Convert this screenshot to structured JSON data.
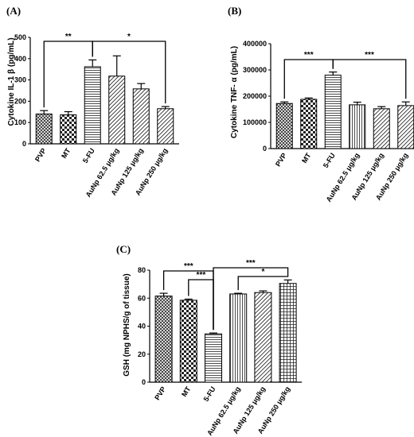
{
  "chart_data": [
    {
      "panel": "(A)",
      "type": "bar",
      "ylabel": "Cytokine IL-1  β (pg/mL)",
      "ylim": [
        0,
        500
      ],
      "yticks": [
        "0",
        "100",
        "200",
        "300",
        "400",
        "500"
      ],
      "yticks_values": [
        0,
        100,
        200,
        300,
        400,
        500
      ],
      "categories": [
        "PVP",
        "MT",
        "5-FU",
        "AuNp 62.5 μg/kg",
        "AuNp 125 μg/kg",
        "AuNp 250 μg/kg"
      ],
      "values": [
        140,
        136,
        362,
        318,
        258,
        165
      ],
      "errors": [
        16,
        15,
        32,
        95,
        25,
        10
      ],
      "patterns": [
        "cross",
        "check",
        "hline",
        "diag",
        "diag",
        "diag"
      ],
      "significance": [
        {
          "label": "**",
          "from": 0,
          "to": 2
        },
        {
          "label": "*",
          "from": 2,
          "to": 5
        }
      ],
      "grid": false
    },
    {
      "panel": "(B)",
      "type": "bar",
      "ylabel": "Cytokine TNF-  α (pg/mL)",
      "ylim": [
        0,
        400000
      ],
      "yticks": [
        "0",
        "100000",
        "200000",
        "300000",
        "400000"
      ],
      "yticks_values": [
        0,
        100000,
        200000,
        300000,
        400000
      ],
      "categories": [
        "PVP",
        "MT",
        "5-FU",
        "AuNp 62.5 μg/kg",
        "AuNp 125 μg/kg",
        "AuNp 250 μg/kg"
      ],
      "values": [
        172000,
        188000,
        280000,
        167000,
        152000,
        164000
      ],
      "errors": [
        6000,
        5000,
        12000,
        10000,
        8000,
        14000
      ],
      "patterns": [
        "cross",
        "check",
        "hline",
        "vline",
        "diag",
        "diag"
      ],
      "significance": [
        {
          "label": "***",
          "from": 0,
          "to": 2
        },
        {
          "label": "***",
          "from": 2,
          "to": 5
        }
      ],
      "grid": false
    },
    {
      "panel": "(C)",
      "type": "bar",
      "ylabel": "GSH (mg NPHS/g of tissue)",
      "ylim": [
        0,
        80
      ],
      "yticks": [
        "0",
        "20",
        "40",
        "60",
        "80"
      ],
      "yticks_values": [
        0,
        20,
        40,
        60,
        80
      ],
      "categories": [
        "PVP",
        "MT",
        "5-FU",
        "AuNp 62.5 μg/kg",
        "AuNp 125 μg/kg",
        "AuNp 250 μg/kg"
      ],
      "values": [
        61.5,
        58.5,
        34.5,
        63,
        64,
        70.5
      ],
      "errors": [
        2.0,
        0.8,
        0.6,
        0.5,
        1.2,
        2.5
      ],
      "patterns": [
        "cross",
        "check",
        "hline",
        "vline",
        "diag",
        "grid"
      ],
      "significance": [
        {
          "label": "***",
          "from": 0,
          "to": 2
        },
        {
          "label": "***",
          "from": 1,
          "to": 2
        },
        {
          "label": "***",
          "from": 2,
          "to": 5
        },
        {
          "label": "*",
          "from": 3,
          "to": 5
        }
      ],
      "grid": false
    }
  ]
}
